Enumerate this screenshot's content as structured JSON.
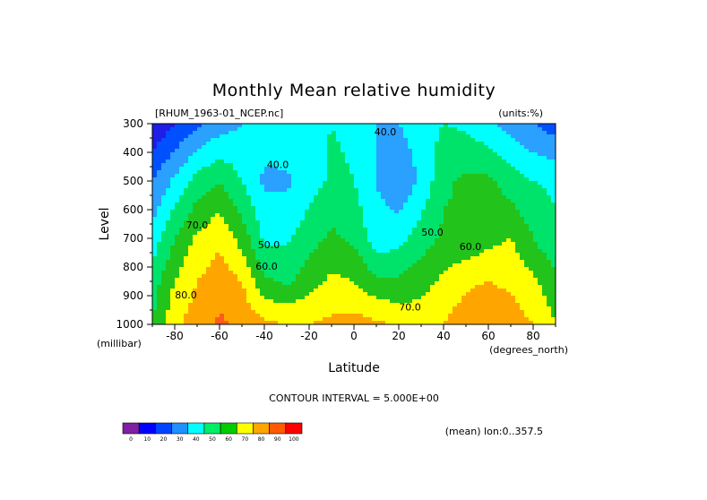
{
  "title": "Monthly Mean relative humidity",
  "dataset_label": "[RHUM_1963-01_NCEP.nc]",
  "units_label": "(units:%)",
  "contour_interval_label": "CONTOUR INTERVAL = 5.000E+00",
  "mean_label": "(mean) lon:0..357.5",
  "colors": {
    "colorbar": [
      "#7f1fa4",
      "#0000ff",
      "#0044ff",
      "#1e90ff",
      "#00ffff",
      "#00ee66",
      "#00cc00",
      "#ffff00",
      "#ffa500",
      "#ff5a00",
      "#ff0000"
    ],
    "fill_levels": [
      "#7a1fa8",
      "#1e1ee6",
      "#0050ff",
      "#2aa0ff",
      "#00ffff",
      "#00e36b",
      "#22c41c",
      "#ffff00",
      "#ffa500",
      "#ff5a1e",
      "#ff0000"
    ]
  },
  "chart_data": {
    "type": "heatmap",
    "title": "Monthly Mean relative humidity",
    "xlabel": "Latitude",
    "xunits": "(degrees_north)",
    "ylabel": "Level",
    "yunits": "(millibar)",
    "xlim": [
      -90,
      90
    ],
    "ylim": [
      1000,
      300
    ],
    "x_ticks": [
      -80,
      -60,
      -40,
      -20,
      0,
      20,
      40,
      60,
      80
    ],
    "y_ticks": [
      300,
      400,
      500,
      600,
      700,
      800,
      900,
      1000
    ],
    "colorbar_ticks": [
      "0",
      "10",
      "20",
      "30",
      "40",
      "50",
      "60",
      "70",
      "80",
      "90",
      "100"
    ],
    "contour_labels": [
      {
        "text": "40.0",
        "lat": -34,
        "lev": 455
      },
      {
        "text": "40.0",
        "lat": 14,
        "lev": 340
      },
      {
        "text": "50.0",
        "lat": 35,
        "lev": 690
      },
      {
        "text": "50.0",
        "lat": -38,
        "lev": 735
      },
      {
        "text": "60.0",
        "lat": 52,
        "lev": 740
      },
      {
        "text": "60.0",
        "lat": -39,
        "lev": 810
      },
      {
        "text": "70.0",
        "lat": -70,
        "lev": 665
      },
      {
        "text": "70.0",
        "lat": 25,
        "lev": 952
      },
      {
        "text": "80.0",
        "lat": -75,
        "lev": 910
      }
    ],
    "profiles": {
      "lat": [
        -90,
        -80,
        -70,
        -60,
        -50,
        -40,
        -30,
        -20,
        -10,
        0,
        10,
        20,
        30,
        40,
        50,
        60,
        70,
        80,
        90
      ],
      "rh_at_300": [
        10,
        20,
        28,
        35,
        40,
        46,
        48,
        47,
        50,
        48,
        40,
        40,
        45,
        50,
        48,
        42,
        35,
        30,
        25
      ],
      "rh_at_500": [
        30,
        42,
        54,
        60,
        50,
        38,
        38,
        45,
        52,
        50,
        40,
        32,
        42,
        58,
        62,
        62,
        55,
        50,
        48
      ],
      "rh_at_700": [
        44,
        60,
        72,
        78,
        66,
        48,
        48,
        56,
        62,
        58,
        44,
        46,
        55,
        62,
        62,
        67,
        70,
        60,
        52
      ],
      "rh_at_850": [
        55,
        70,
        80,
        85,
        80,
        62,
        58,
        66,
        72,
        70,
        62,
        62,
        66,
        72,
        78,
        80,
        78,
        72,
        62
      ],
      "rh_at_1000": [
        60,
        78,
        85,
        92,
        88,
        82,
        80,
        80,
        82,
        84,
        82,
        78,
        76,
        80,
        86,
        88,
        85,
        80,
        70
      ]
    }
  }
}
